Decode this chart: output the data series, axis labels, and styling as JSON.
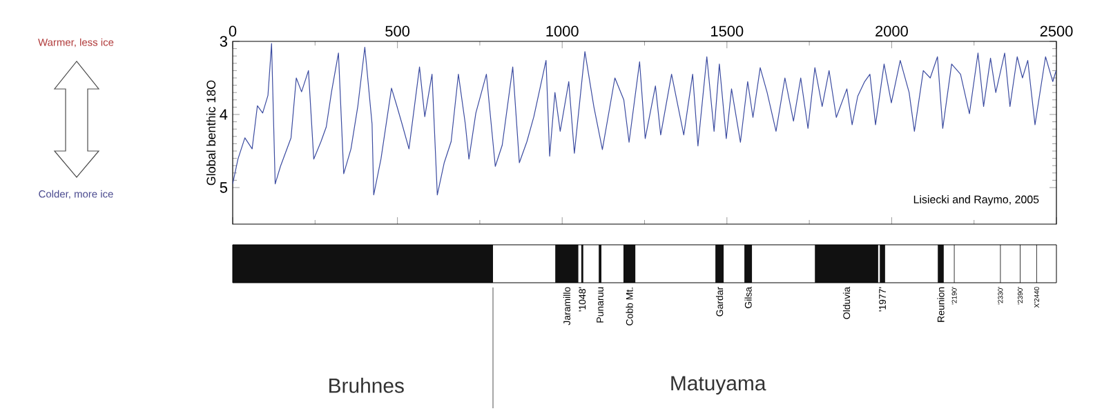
{
  "chart_data": [
    {
      "type": "line",
      "ylabel": "Global benthic 18O",
      "color": "#3b4ba0",
      "x": [
        0,
        16,
        37,
        59,
        75,
        91,
        107,
        118,
        129,
        145,
        177,
        193,
        209,
        230,
        246,
        268,
        284,
        300,
        321,
        337,
        359,
        380,
        401,
        423,
        428,
        450,
        482,
        498,
        514,
        535,
        567,
        583,
        605,
        621,
        642,
        663,
        685,
        706,
        717,
        738,
        770,
        797,
        818,
        850,
        870,
        893,
        914,
        951,
        962,
        978,
        994,
        1020,
        1037,
        1069,
        1096,
        1122,
        1160,
        1187,
        1203,
        1235,
        1252,
        1283,
        1299,
        1332,
        1369,
        1396,
        1412,
        1439,
        1461,
        1477,
        1498,
        1514,
        1541,
        1563,
        1579,
        1601,
        1622,
        1649,
        1676,
        1702,
        1724,
        1746,
        1767,
        1789,
        1810,
        1832,
        1864,
        1880,
        1897,
        1918,
        1934,
        1951,
        1977,
        1999,
        2026,
        2053,
        2069,
        2096,
        2117,
        2139,
        2155,
        2182,
        2209,
        2236,
        2262,
        2279,
        2300,
        2316,
        2343,
        2359,
        2381,
        2397,
        2413,
        2435,
        2467,
        2489,
        2499
      ],
      "values": [
        4.95,
        4.61,
        4.32,
        4.47,
        3.88,
        3.98,
        3.74,
        3.03,
        4.95,
        4.71,
        4.32,
        3.5,
        3.69,
        3.4,
        4.61,
        4.37,
        4.17,
        3.69,
        3.16,
        4.81,
        4.47,
        3.88,
        3.08,
        4.13,
        5.1,
        4.61,
        3.64,
        3.88,
        4.13,
        4.47,
        3.35,
        4.03,
        3.45,
        5.1,
        4.66,
        4.37,
        3.45,
        4.13,
        4.61,
        3.98,
        3.45,
        4.71,
        4.42,
        3.35,
        4.66,
        4.37,
        4.03,
        3.26,
        4.57,
        3.7,
        4.23,
        3.55,
        4.53,
        3.14,
        3.89,
        4.48,
        3.5,
        3.8,
        4.38,
        3.28,
        4.33,
        3.61,
        4.28,
        3.45,
        4.28,
        3.45,
        4.43,
        3.21,
        4.23,
        3.31,
        4.33,
        3.65,
        4.38,
        3.55,
        4.04,
        3.36,
        3.7,
        4.23,
        3.5,
        4.09,
        3.5,
        4.19,
        3.36,
        3.89,
        3.4,
        4.04,
        3.65,
        4.14,
        3.75,
        3.55,
        3.45,
        4.14,
        3.31,
        3.84,
        3.26,
        3.7,
        4.23,
        3.4,
        3.5,
        3.21,
        4.19,
        3.31,
        3.45,
        3.99,
        3.16,
        3.89,
        3.23,
        3.7,
        3.16,
        3.89,
        3.21,
        3.5,
        3.26,
        4.14,
        3.21,
        3.55,
        3.4
      ],
      "xlim": [
        0,
        2500
      ],
      "ylim": [
        5.5,
        3
      ],
      "xticks": [
        0,
        500,
        1000,
        1500,
        2000,
        2500
      ],
      "yticks": [
        3,
        4,
        5
      ],
      "annotations": [
        "Warmer, less ice",
        "Colder, more ice",
        "Lisiecki and Raymo, 2005"
      ]
    },
    {
      "type": "bar",
      "orientation": "horizontal",
      "categories": [
        null
      ],
      "xlim": [
        0,
        2500
      ],
      "tick_labels": false,
      "series": [
        {
          "color": "#111111",
          "values": [
            790
          ],
          "base": [
            0
          ]
        },
        {
          "name": "Jaramillo",
          "color": "#111111",
          "values": [
            70
          ],
          "base": [
            979
          ]
        },
        {
          "name": "'1048'",
          "color": "#111111",
          "values": [
            6
          ],
          "base": [
            1058
          ]
        },
        {
          "name": "Punaruu",
          "color": "#111111",
          "values": [
            8
          ],
          "base": [
            1111
          ]
        },
        {
          "name": "Cobb Mt.",
          "color": "#111111",
          "values": [
            36
          ],
          "base": [
            1186
          ]
        },
        {
          "name": "Gardar",
          "color": "#111111",
          "values": [
            25
          ],
          "base": [
            1465
          ]
        },
        {
          "name": "Gilsa",
          "color": "#111111",
          "values": [
            23
          ],
          "base": [
            1553
          ]
        },
        {
          "name": "Olduvia",
          "color": "#111111",
          "values": [
            192
          ],
          "base": [
            1767
          ]
        },
        {
          "name": "'1977'",
          "color": "#111111",
          "values": [
            16
          ],
          "base": [
            1964
          ]
        },
        {
          "name": "Reunion",
          "color": "#111111",
          "values": [
            18
          ],
          "base": [
            2140
          ]
        }
      ],
      "ref_lines": [
        {
          "axis": "x",
          "value": 2190,
          "label": "'2190'"
        },
        {
          "axis": "x",
          "value": 2330,
          "label": "'2330'"
        },
        {
          "axis": "x",
          "value": 2390,
          "label": "'2390'"
        },
        {
          "axis": "x",
          "value": 2440,
          "label": "X'2440"
        },
        {
          "axis": "x",
          "value": 790,
          "label": null
        }
      ],
      "annotations": [
        "Bruhnes",
        "Matuyama"
      ]
    }
  ]
}
